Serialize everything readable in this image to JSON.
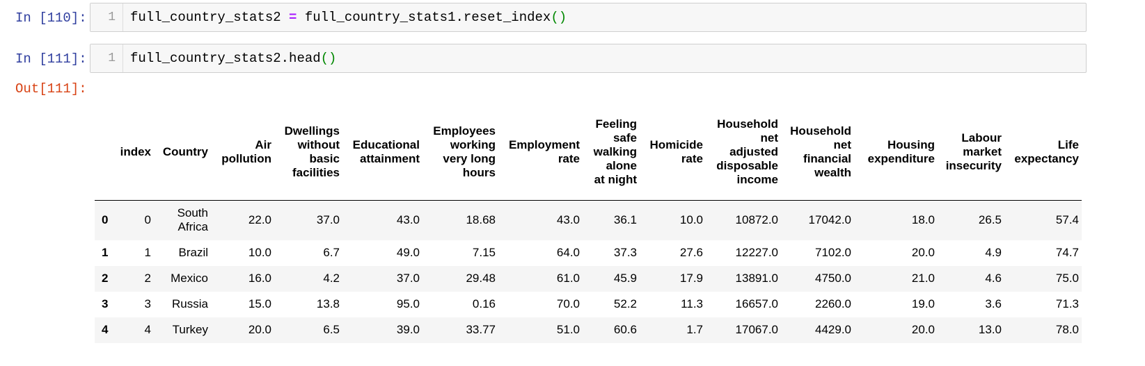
{
  "cells": [
    {
      "prompt": "In [110]:",
      "line_number": "1",
      "code": {
        "lhs": "full_country_stats2 ",
        "op": "=",
        "rhs": " full_country_stats1.reset_index",
        "parens": "()"
      }
    },
    {
      "prompt": "In [111]:",
      "line_number": "1",
      "code": {
        "lhs": "full_country_stats2.head",
        "parens": "()"
      }
    }
  ],
  "output_prompt": "Out[111]:",
  "table": {
    "columns": [
      "",
      "index",
      "Country",
      "Air\npollution",
      "Dwellings\nwithout\nbasic\nfacilities",
      "Educational\nattainment",
      "Employees\nworking\nvery long\nhours",
      "Employment\nrate",
      "Feeling\nsafe\nwalking\nalone\nat night",
      "Homicide\nrate",
      "Household\nnet\nadjusted\ndisposable\nincome",
      "Household\nnet\nfinancial\nwealth",
      "Housing\nexpenditure",
      "Labour\nmarket\ninsecurity",
      "Life\nexpectancy"
    ],
    "rows": [
      [
        "0",
        "0",
        "South\nAfrica",
        "22.0",
        "37.0",
        "43.0",
        "18.68",
        "43.0",
        "36.1",
        "10.0",
        "10872.0",
        "17042.0",
        "18.0",
        "26.5",
        "57.4"
      ],
      [
        "1",
        "1",
        "Brazil",
        "10.0",
        "6.7",
        "49.0",
        "7.15",
        "64.0",
        "37.3",
        "27.6",
        "12227.0",
        "7102.0",
        "20.0",
        "4.9",
        "74.7"
      ],
      [
        "2",
        "2",
        "Mexico",
        "16.0",
        "4.2",
        "37.0",
        "29.48",
        "61.0",
        "45.9",
        "17.9",
        "13891.0",
        "4750.0",
        "21.0",
        "4.6",
        "75.0"
      ],
      [
        "3",
        "3",
        "Russia",
        "15.0",
        "13.8",
        "95.0",
        "0.16",
        "70.0",
        "52.2",
        "11.3",
        "16657.0",
        "2260.0",
        "19.0",
        "3.6",
        "71.3"
      ],
      [
        "4",
        "4",
        "Turkey",
        "20.0",
        "6.5",
        "39.0",
        "33.77",
        "51.0",
        "60.6",
        "1.7",
        "17067.0",
        "4429.0",
        "20.0",
        "13.0",
        "78.0"
      ]
    ]
  }
}
